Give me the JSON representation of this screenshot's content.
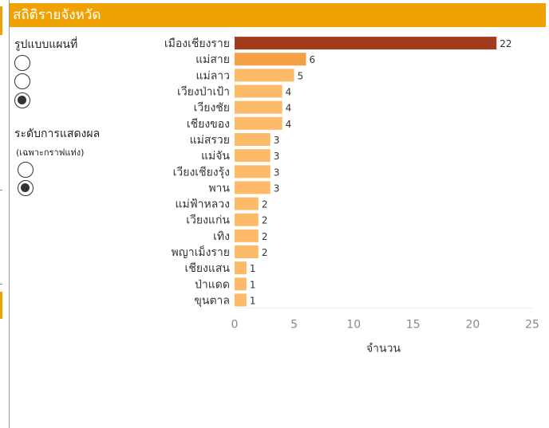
{
  "header": {
    "title": "สถิติรายจังหวัด"
  },
  "map_style": {
    "title": "รูปแบบแผนที่",
    "options": [
      {
        "selected": false
      },
      {
        "selected": false
      },
      {
        "selected": true
      }
    ]
  },
  "display_level": {
    "title": "ระดับการแสดงผล",
    "subtitle": "(เฉพาะกราฟแท่ง)",
    "options": [
      {
        "selected": false
      },
      {
        "selected": true
      }
    ]
  },
  "colors": {
    "header": "#f0a202",
    "bar_max": "#a23a1e",
    "bar_mid": "#f4a146",
    "bar_low": "#fdbb6a"
  },
  "chart_data": {
    "type": "bar",
    "orientation": "horizontal",
    "categories": [
      "เมืองเชียงราย",
      "แม่สาย",
      "แม่ลาว",
      "เวียงป่าเป้า",
      "เวียงชัย",
      "เชียงของ",
      "แม่สรวย",
      "แม่จัน",
      "เวียงเชียงรุ้ง",
      "พาน",
      "แม่ฟ้าหลวง",
      "เวียงแก่น",
      "เทิง",
      "พญาเม็งราย",
      "เชียงแสน",
      "ป่าแดด",
      "ขุนตาล"
    ],
    "values": [
      22,
      6,
      5,
      4,
      4,
      4,
      3,
      3,
      3,
      3,
      2,
      2,
      2,
      2,
      1,
      1,
      1
    ],
    "xlabel": "จำนวน",
    "ylabel": "",
    "xlim": [
      0,
      25
    ],
    "xticks": [
      0,
      5,
      10,
      15,
      20,
      25
    ],
    "grid": false
  }
}
